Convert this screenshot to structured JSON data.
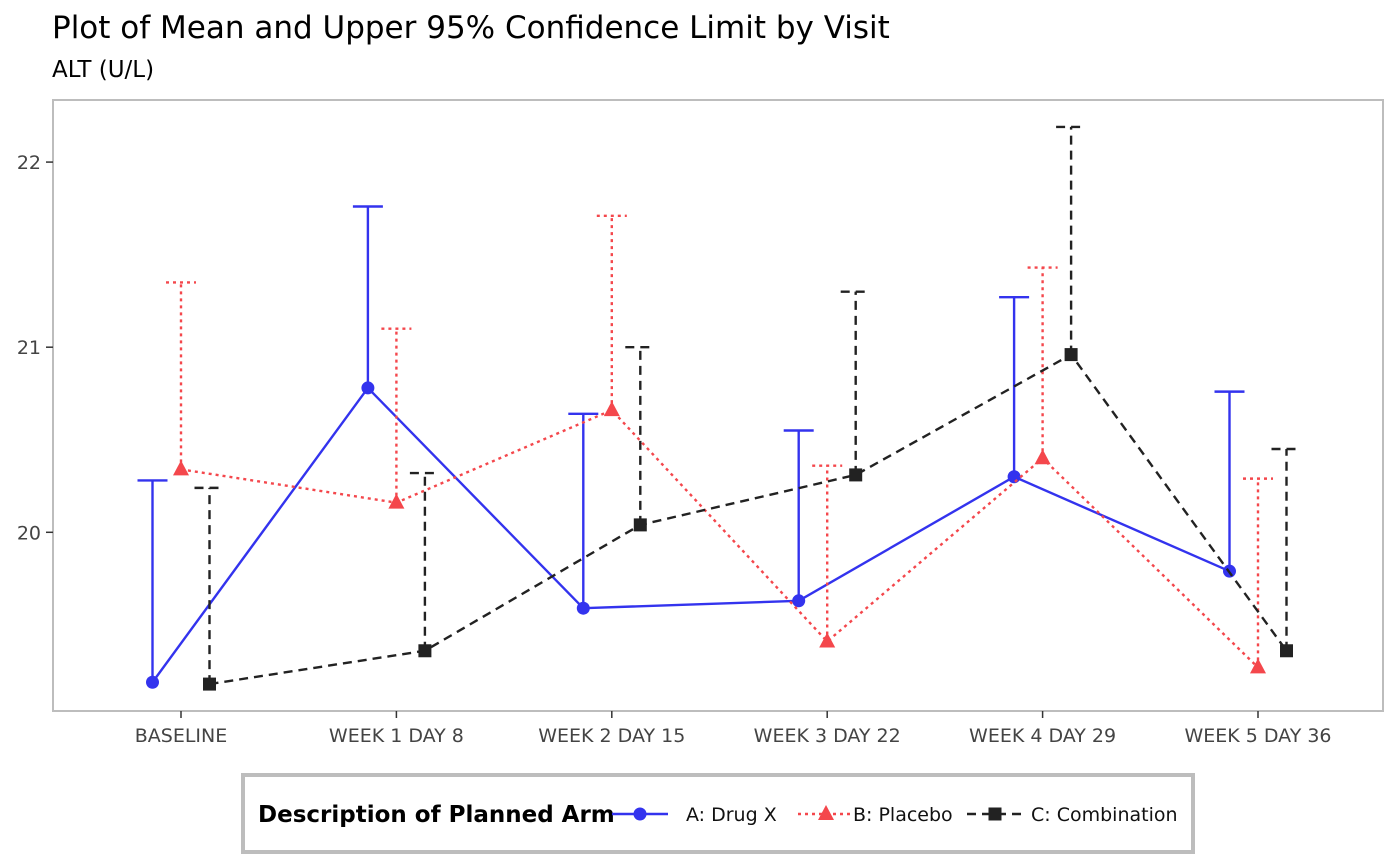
{
  "chart_data": {
    "type": "line",
    "title": "Plot of Mean and Upper 95% Confidence Limit by Visit",
    "subtitle": "ALT (U/L)",
    "xlabel": "",
    "ylabel": "",
    "categories": [
      "BASELINE",
      "WEEK 1 DAY 8",
      "WEEK 2 DAY 15",
      "WEEK 3 DAY 22",
      "WEEK 4 DAY 29",
      "WEEK 5 DAY 36"
    ],
    "y_ticks": [
      20,
      21,
      22
    ],
    "ylim": [
      19.04,
      22.33
    ],
    "grid": false,
    "legend": {
      "title": "Description of Planned Arm",
      "position": "bottom"
    },
    "series": [
      {
        "name": "A: Drug X",
        "color": "#3333ee",
        "line_style": "solid",
        "marker": "circle",
        "mean": [
          19.19,
          20.78,
          19.59,
          19.63,
          20.3,
          19.79
        ],
        "upper_95_cl": [
          20.28,
          21.76,
          20.64,
          20.55,
          21.27,
          20.76
        ]
      },
      {
        "name": "B: Placebo",
        "color": "#f4474c",
        "line_style": "dotted",
        "marker": "triangle",
        "mean": [
          20.34,
          20.16,
          20.66,
          19.41,
          20.4,
          19.27
        ],
        "upper_95_cl": [
          21.35,
          21.1,
          21.71,
          20.36,
          21.43,
          20.29
        ]
      },
      {
        "name": "C: Combination",
        "color": "#222222",
        "line_style": "dashed",
        "marker": "square",
        "mean": [
          19.18,
          19.36,
          20.04,
          20.31,
          20.96,
          19.36
        ],
        "upper_95_cl": [
          20.24,
          20.32,
          21.0,
          21.3,
          22.19,
          20.45
        ]
      }
    ]
  }
}
